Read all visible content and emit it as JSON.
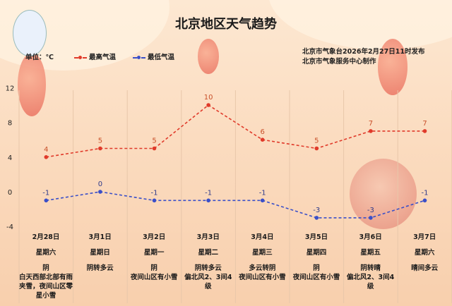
{
  "title": "北京地区天气趋势",
  "unit_label": "单位：℃",
  "issuer": "北京市气象台2026年2月27日11时发布",
  "producer": "北京市气象服务中心制作",
  "chart_data": {
    "type": "line",
    "categories": [
      "2月28日",
      "3月1日",
      "3月2日",
      "3月3日",
      "3月4日",
      "3月5日",
      "3月6日",
      "3月7日"
    ],
    "weekdays": [
      "星期六",
      "星期日",
      "星期一",
      "星期二",
      "星期三",
      "星期四",
      "星期五",
      "星期六"
    ],
    "weather": [
      "阴",
      "阴转多云",
      "阴",
      "阴转多云",
      "多云转阴",
      "阴",
      "阴转晴",
      "晴间多云"
    ],
    "notes": [
      "白天西部北部有雨夹雪，夜间山区零星小雪",
      "",
      "夜间山区有小雪",
      "偏北风2、3间4级",
      "夜间山区有小雪",
      "夜间山区有小雪",
      "偏北风2、3间4级",
      ""
    ],
    "series": [
      {
        "name": "最高气温",
        "color": "#e03a2a",
        "values": [
          4,
          5,
          5,
          10,
          6,
          5,
          7,
          7
        ]
      },
      {
        "name": "最低气温",
        "color": "#3a4fc8",
        "values": [
          -1,
          0,
          -1,
          -1,
          -1,
          -3,
          -3,
          -1
        ]
      }
    ],
    "yticks": [
      12,
      8,
      4,
      0,
      -4
    ],
    "ylim": [
      -4,
      12
    ],
    "grid": "vertical"
  }
}
